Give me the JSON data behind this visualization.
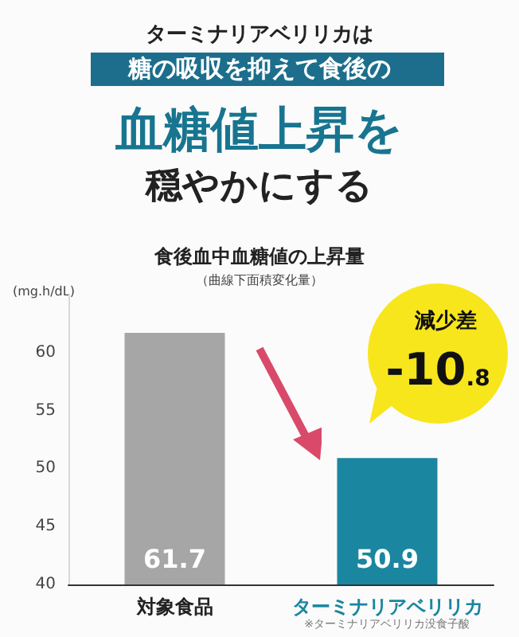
{
  "chart_data": {
    "type": "bar",
    "title": "食後血中血糖値の上昇量",
    "subtitle": "（曲線下面積変化量）",
    "ylabel": "(mg.h/dL)",
    "categories": [
      "対象食品",
      "ターミナリアベリリカ"
    ],
    "values": [
      61.7,
      50.9
    ],
    "colors": [
      "#a6a6a6",
      "#1a86a0"
    ],
    "data_labels": true,
    "ylim": [
      40,
      65
    ],
    "yticks": [
      40,
      45,
      50,
      55,
      60
    ],
    "grid": false,
    "annotations": [
      "ターミナリアベリリカは",
      "糖の吸収を抑えて食後の",
      "血糖値上昇を",
      "穏やかにする",
      "減少差",
      "-10.8",
      "※ターミナリアベリリカ没食子酸"
    ]
  }
}
